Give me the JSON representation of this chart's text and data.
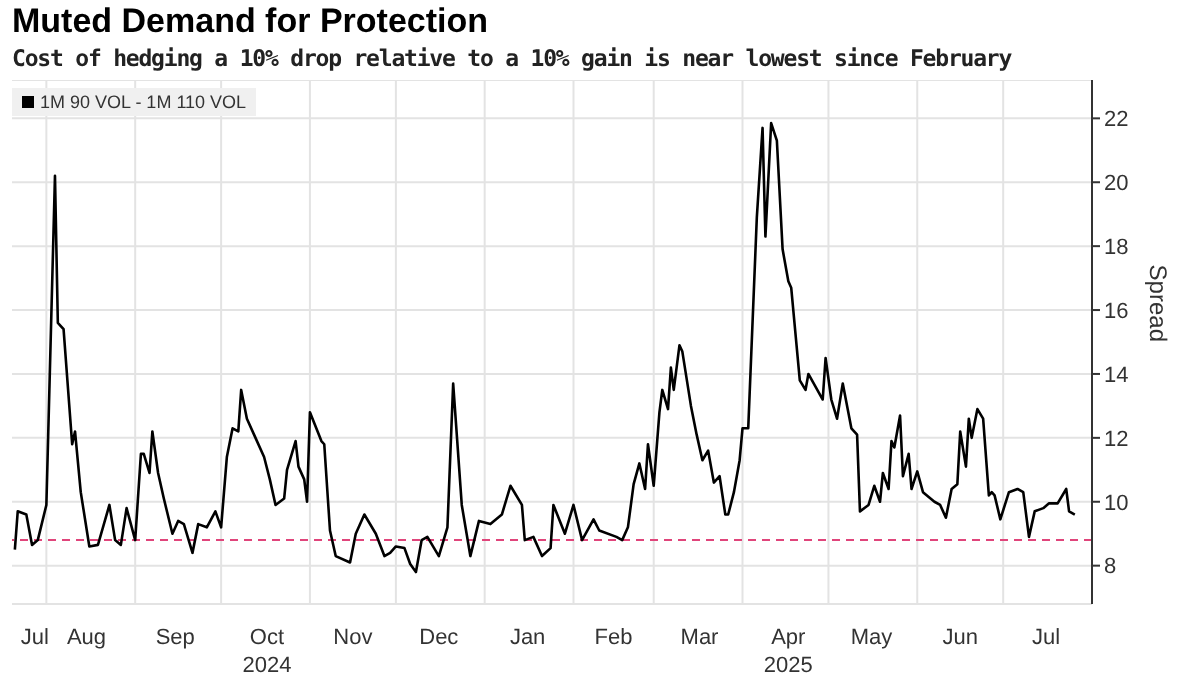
{
  "chart_data": {
    "type": "line",
    "title": "Muted Demand for Protection",
    "subtitle": "Cost of hedging a 10% drop relative to a 10% gain is near lowest since February",
    "ylabel": "Spread",
    "x": [
      "2024-07-21",
      "2024-07-22",
      "2024-07-25",
      "2024-07-27",
      "2024-07-29",
      "2024-08-01",
      "2024-08-04",
      "2024-08-05",
      "2024-08-07",
      "2024-08-10",
      "2024-08-11",
      "2024-08-13",
      "2024-08-16",
      "2024-08-19",
      "2024-08-23",
      "2024-08-25",
      "2024-08-27",
      "2024-08-29",
      "2024-09-01",
      "2024-09-03",
      "2024-09-04",
      "2024-09-06",
      "2024-09-07",
      "2024-09-09",
      "2024-09-11",
      "2024-09-14",
      "2024-09-16",
      "2024-09-18",
      "2024-09-21",
      "2024-09-23",
      "2024-09-26",
      "2024-09-29",
      "2024-10-01",
      "2024-10-03",
      "2024-10-05",
      "2024-10-07",
      "2024-10-08",
      "2024-10-10",
      "2024-10-13",
      "2024-10-16",
      "2024-10-18",
      "2024-10-20",
      "2024-10-23",
      "2024-10-24",
      "2024-10-27",
      "2024-10-28",
      "2024-10-30",
      "2024-10-31",
      "2024-11-01",
      "2024-11-05",
      "2024-11-06",
      "2024-11-08",
      "2024-11-10",
      "2024-11-15",
      "2024-11-17",
      "2024-11-20",
      "2024-11-24",
      "2024-11-27",
      "2024-11-29",
      "2024-12-01",
      "2024-12-04",
      "2024-12-06",
      "2024-12-08",
      "2024-12-10",
      "2024-12-12",
      "2024-12-16",
      "2024-12-19",
      "2024-12-21",
      "2024-12-24",
      "2024-12-27",
      "2024-12-30",
      "2025-01-03",
      "2025-01-07",
      "2025-01-10",
      "2025-01-14",
      "2025-01-15",
      "2025-01-18",
      "2025-01-21",
      "2025-01-24",
      "2025-01-25",
      "2025-01-29",
      "2025-02-01",
      "2025-02-04",
      "2025-02-08",
      "2025-02-10",
      "2025-02-16",
      "2025-02-18",
      "2025-02-20",
      "2025-02-22",
      "2025-02-24",
      "2025-02-26",
      "2025-02-27",
      "2025-03-01",
      "2025-03-03",
      "2025-03-04",
      "2025-03-06",
      "2025-03-07",
      "2025-03-08",
      "2025-03-10",
      "2025-03-11",
      "2025-03-14",
      "2025-03-16",
      "2025-03-18",
      "2025-03-20",
      "2025-03-22",
      "2025-03-24",
      "2025-03-26",
      "2025-03-27",
      "2025-03-29",
      "2025-03-31",
      "2025-04-01",
      "2025-04-03",
      "2025-04-06",
      "2025-04-08",
      "2025-04-09",
      "2025-04-11",
      "2025-04-13",
      "2025-04-15",
      "2025-04-17",
      "2025-04-18",
      "2025-04-21",
      "2025-04-23",
      "2025-04-24",
      "2025-04-29",
      "2025-04-30",
      "2025-05-02",
      "2025-05-04",
      "2025-05-06",
      "2025-05-09",
      "2025-05-11",
      "2025-05-12",
      "2025-05-15",
      "2025-05-17",
      "2025-05-19",
      "2025-05-20",
      "2025-05-22",
      "2025-05-23",
      "2025-05-24",
      "2025-05-26",
      "2025-05-27",
      "2025-05-29",
      "2025-05-30",
      "2025-06-01",
      "2025-06-03",
      "2025-06-07",
      "2025-06-09",
      "2025-06-11",
      "2025-06-13",
      "2025-06-15",
      "2025-06-16",
      "2025-06-18",
      "2025-06-19",
      "2025-06-20",
      "2025-06-22",
      "2025-06-24",
      "2025-06-26",
      "2025-06-27",
      "2025-06-28",
      "2025-06-30",
      "2025-07-03",
      "2025-07-06",
      "2025-07-08",
      "2025-07-10",
      "2025-07-12",
      "2025-07-15",
      "2025-07-17",
      "2025-07-20",
      "2025-07-23",
      "2025-07-24",
      "2025-07-26"
    ],
    "series": [
      {
        "name": "1M 90 VOL - 1M 110 VOL",
        "color": "#000000",
        "values": [
          8.5,
          9.7,
          9.6,
          8.65,
          8.8,
          9.9,
          20.2,
          15.6,
          15.4,
          11.8,
          12.2,
          10.3,
          8.6,
          8.65,
          9.9,
          8.8,
          8.65,
          9.8,
          8.8,
          11.5,
          11.5,
          10.9,
          12.2,
          10.9,
          10.1,
          9.0,
          9.4,
          9.3,
          8.4,
          9.3,
          9.2,
          9.7,
          9.2,
          11.4,
          12.3,
          12.2,
          13.5,
          12.6,
          12.0,
          11.4,
          10.7,
          9.9,
          10.1,
          11.0,
          11.9,
          11.1,
          10.7,
          10.0,
          12.8,
          11.9,
          11.8,
          9.1,
          8.3,
          8.1,
          9.0,
          9.6,
          9.0,
          8.3,
          8.4,
          8.6,
          8.55,
          8.05,
          7.8,
          8.8,
          8.9,
          8.3,
          9.2,
          13.7,
          9.9,
          8.3,
          9.4,
          9.3,
          9.6,
          10.5,
          9.9,
          8.8,
          8.9,
          8.3,
          8.55,
          9.9,
          9.0,
          9.9,
          8.8,
          9.45,
          9.1,
          8.9,
          8.8,
          9.2,
          10.55,
          11.2,
          10.4,
          11.8,
          10.5,
          12.8,
          13.5,
          12.9,
          14.2,
          13.5,
          14.9,
          14.7,
          13.0,
          12.1,
          11.3,
          11.6,
          10.6,
          10.8,
          9.6,
          9.6,
          10.3,
          11.3,
          12.3,
          12.3,
          18.9,
          21.7,
          18.3,
          21.85,
          21.3,
          17.9,
          16.9,
          16.7,
          13.8,
          13.5,
          14.0,
          13.2,
          14.5,
          13.2,
          12.6,
          13.7,
          12.3,
          12.1,
          9.7,
          9.9,
          10.5,
          10.0,
          10.9,
          10.4,
          11.9,
          11.7,
          12.7,
          10.8,
          11.5,
          10.4,
          10.95,
          10.3,
          10.0,
          9.9,
          9.5,
          10.4,
          10.55,
          12.2,
          11.1,
          12.6,
          12.0,
          12.9,
          12.6,
          10.2,
          10.3,
          10.2,
          9.45,
          10.3,
          10.4,
          10.3,
          8.9,
          9.7,
          9.8,
          9.95,
          9.95,
          10.4,
          9.7,
          9.6
        ]
      }
    ],
    "xlim": [
      "2024-07-20",
      "2025-08-01"
    ],
    "xticks": [
      {
        "value": "2024-07-28",
        "label": "Jul"
      },
      {
        "value": "2024-08-01",
        "label": null
      },
      {
        "value": "2024-08-15",
        "label": "Aug"
      },
      {
        "value": "2024-09-01",
        "label": null
      },
      {
        "value": "2024-09-15",
        "label": "Sep"
      },
      {
        "value": "2024-10-01",
        "label": null
      },
      {
        "value": "2024-10-17",
        "label": "Oct\n2024"
      },
      {
        "value": "2024-11-01",
        "label": null
      },
      {
        "value": "2024-11-16",
        "label": "Nov"
      },
      {
        "value": "2024-12-01",
        "label": null
      },
      {
        "value": "2024-12-16",
        "label": "Dec"
      },
      {
        "value": "2025-01-01",
        "label": null
      },
      {
        "value": "2025-01-16",
        "label": "Jan"
      },
      {
        "value": "2025-02-01",
        "label": null
      },
      {
        "value": "2025-02-15",
        "label": "Feb"
      },
      {
        "value": "2025-03-01",
        "label": null
      },
      {
        "value": "2025-03-17",
        "label": "Mar"
      },
      {
        "value": "2025-04-01",
        "label": null
      },
      {
        "value": "2025-04-17",
        "label": "Apr\n2025"
      },
      {
        "value": "2025-05-01",
        "label": null
      },
      {
        "value": "2025-05-16",
        "label": "May"
      },
      {
        "value": "2025-06-01",
        "label": null
      },
      {
        "value": "2025-06-16",
        "label": "Jun"
      },
      {
        "value": "2025-07-01",
        "label": null
      },
      {
        "value": "2025-07-16",
        "label": "Jul"
      }
    ],
    "ylim": [
      6.8,
      23.2
    ],
    "yticks": [
      8,
      10,
      12,
      14,
      16,
      18,
      20,
      22
    ],
    "ref_lines": [
      {
        "axis": "y",
        "value": 8.8,
        "color": "#e0457b",
        "line_style": "dashed"
      }
    ],
    "grid": true,
    "legend": "top left",
    "marker": "none",
    "line_style": "solid"
  }
}
